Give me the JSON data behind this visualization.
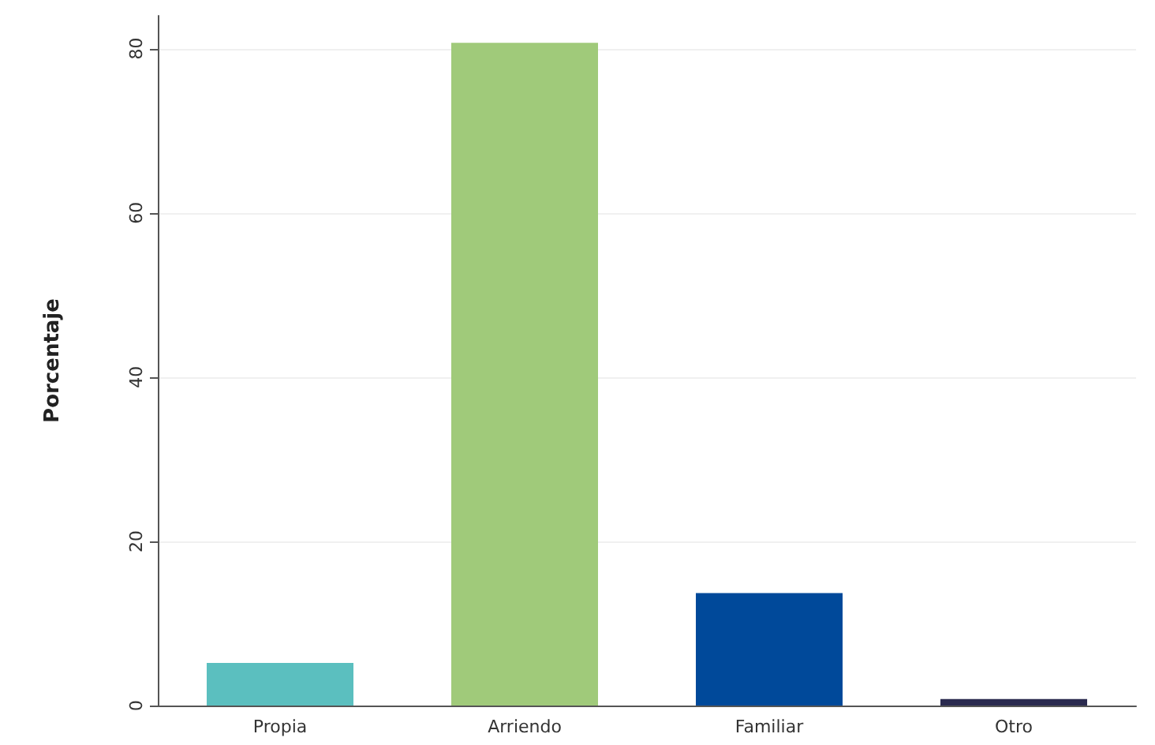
{
  "chart_data": {
    "type": "bar",
    "ylabel": "Porcentaje",
    "categories": [
      "Propia",
      "Arriendo",
      "Familiar",
      "Otro"
    ],
    "values": [
      5.2,
      80.7,
      13.7,
      0.8
    ],
    "colors": [
      "#5bbfbf",
      "#a0ca7a",
      "#00499a",
      "#2a2a4f"
    ],
    "ylim": [
      0,
      84
    ],
    "yticks": [
      0,
      20,
      40,
      60,
      80
    ],
    "grid": "y"
  }
}
